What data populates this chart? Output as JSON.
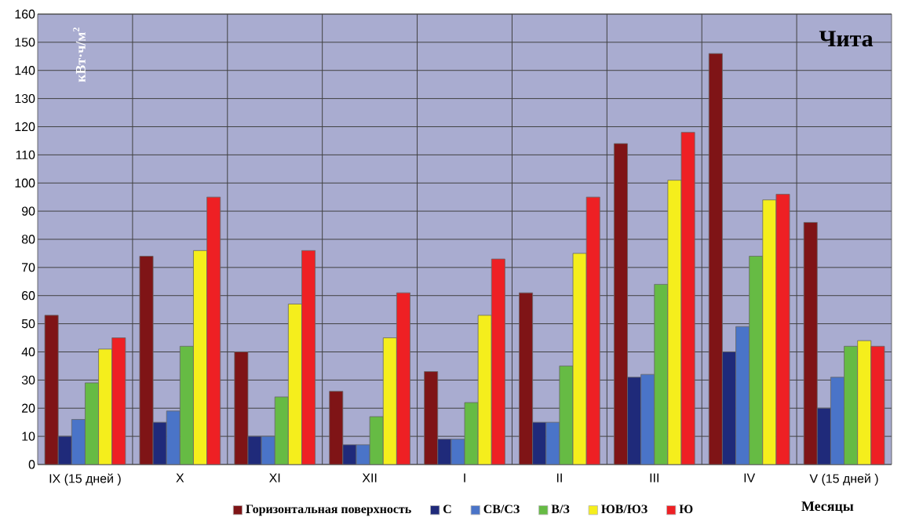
{
  "chart_data": {
    "type": "bar",
    "title": "Чита",
    "ylabel": "кВт·ч/м$^{2}$",
    "xlabel": "Месяцы",
    "categories": [
      "IX (15 дней )",
      "X",
      "XI",
      "XII",
      "I",
      "II",
      "III",
      "IV",
      "V (15 дней )"
    ],
    "series": [
      {
        "name": "Горизонтальная поверхность",
        "color": "#7f1416",
        "values": [
          53,
          74,
          40,
          26,
          33,
          61,
          114,
          146,
          86
        ]
      },
      {
        "name": "С",
        "color": "#1f2a7a",
        "values": [
          10,
          15,
          10,
          7,
          9,
          15,
          31,
          40,
          20
        ]
      },
      {
        "name": "СВ/СЗ",
        "color": "#4a74c8",
        "values": [
          16,
          19,
          10,
          7,
          9,
          15,
          32,
          49,
          31
        ]
      },
      {
        "name": "В/З",
        "color": "#66bb44",
        "values": [
          29,
          42,
          24,
          17,
          22,
          35,
          64,
          74,
          42
        ]
      },
      {
        "name": "ЮВ/ЮЗ",
        "color": "#f5ee1c",
        "values": [
          41,
          76,
          57,
          45,
          53,
          75,
          101,
          94,
          44
        ]
      },
      {
        "name": "Ю",
        "color": "#ee2024",
        "values": [
          45,
          95,
          76,
          61,
          73,
          95,
          118,
          96,
          42
        ]
      }
    ],
    "ylim": [
      0,
      160
    ],
    "yticks": [
      0,
      10,
      20,
      30,
      40,
      50,
      60,
      70,
      80,
      90,
      100,
      110,
      120,
      130,
      140,
      150,
      160
    ],
    "grid": true,
    "legend": "bottom"
  }
}
